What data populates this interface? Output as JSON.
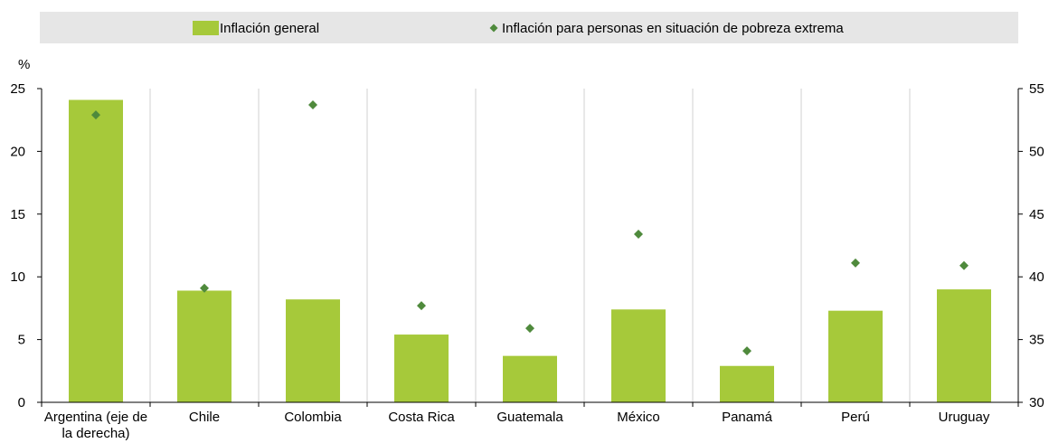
{
  "chart_data": {
    "type": "bar",
    "title": "",
    "y_unit_label": "%",
    "categories": [
      [
        "Argentina (eje de",
        "la derecha)"
      ],
      [
        "Chile"
      ],
      [
        "Colombia"
      ],
      [
        "Costa Rica"
      ],
      [
        "Guatemala"
      ],
      [
        "México"
      ],
      [
        "Panamá"
      ],
      [
        "Perú"
      ],
      [
        "Uruguay"
      ]
    ],
    "left_axis": {
      "ylim": [
        0,
        25
      ],
      "ticks": [
        0,
        5,
        10,
        15,
        20,
        25
      ]
    },
    "right_axis": {
      "ylim": [
        30,
        55
      ],
      "ticks": [
        30,
        35,
        40,
        45,
        50,
        55
      ]
    },
    "legend_placement": "top",
    "grid": "vertical separators between categories",
    "series": [
      {
        "name": "Inflación general",
        "kind": "bar",
        "color": "#a6c93a",
        "values": [
          54.1,
          8.9,
          8.2,
          5.4,
          3.7,
          7.4,
          2.9,
          7.3,
          9.0
        ],
        "axis": [
          "right",
          "left",
          "left",
          "left",
          "left",
          "left",
          "left",
          "left",
          "left"
        ]
      },
      {
        "name": "Inflación para personas en situación de pobreza extrema",
        "kind": "marker",
        "color": "#4f8a3c",
        "values": [
          52.9,
          9.1,
          23.7,
          7.7,
          5.9,
          13.4,
          4.1,
          11.1,
          10.9
        ],
        "axis": [
          "right",
          "left",
          "left",
          "left",
          "left",
          "left",
          "left",
          "left",
          "left"
        ]
      }
    ]
  }
}
